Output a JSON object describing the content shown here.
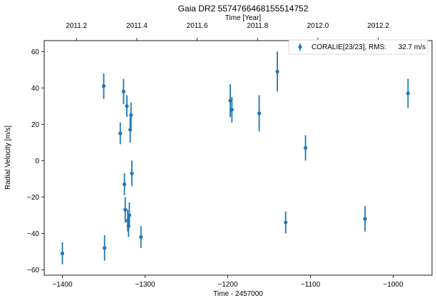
{
  "chart_data": {
    "type": "scatter",
    "title": "Gaia DR2 5574766468155514752",
    "xlabel": "Time - 2457000",
    "ylabel": "Radial Velocity [m/s]",
    "x2label": "Time [Year]",
    "xlim": [
      -1422,
      -953
    ],
    "ylim": [
      -63,
      66
    ],
    "xticks": [
      -1400,
      -1300,
      -1200,
      -1100,
      -1000
    ],
    "yticks": [
      -60,
      -40,
      -20,
      0,
      20,
      40,
      60
    ],
    "x2ticks": [
      {
        "label": "2011.2",
        "x": -1383
      },
      {
        "label": "2011.4",
        "x": -1310
      },
      {
        "label": "2011.6",
        "x": -1237
      },
      {
        "label": "2011.8",
        "x": -1164
      },
      {
        "label": "2012.0",
        "x": -1091
      },
      {
        "label": "2012.2",
        "x": -1018
      }
    ],
    "grid": false,
    "legend_position": "top-right",
    "colors": {
      "series": "#1f77b4"
    },
    "series": [
      {
        "name": "CORALIE[23/23], RMS:",
        "rms": "32.7 m/s",
        "points": [
          {
            "x": -1400,
            "y": -51,
            "err": 6
          },
          {
            "x": -1350,
            "y": 41,
            "err": 7
          },
          {
            "x": -1349,
            "y": -48,
            "err": 7
          },
          {
            "x": -1330,
            "y": 15,
            "err": 6
          },
          {
            "x": -1326,
            "y": 38,
            "err": 7
          },
          {
            "x": -1325,
            "y": -13,
            "err": 6
          },
          {
            "x": -1324,
            "y": -27,
            "err": 7
          },
          {
            "x": -1322,
            "y": 30,
            "err": 6
          },
          {
            "x": -1321,
            "y": -33,
            "err": 6
          },
          {
            "x": -1320,
            "y": -36,
            "err": 6
          },
          {
            "x": -1319,
            "y": -30,
            "err": 7
          },
          {
            "x": -1318,
            "y": 17,
            "err": 7
          },
          {
            "x": -1317,
            "y": 25,
            "err": 7
          },
          {
            "x": -1316,
            "y": -7,
            "err": 7
          },
          {
            "x": -1305,
            "y": -42,
            "err": 6
          },
          {
            "x": -1197,
            "y": 33,
            "err": 9
          },
          {
            "x": -1195,
            "y": 28,
            "err": 7
          },
          {
            "x": -1162,
            "y": 26,
            "err": 10
          },
          {
            "x": -1140,
            "y": 49,
            "err": 11
          },
          {
            "x": -1130,
            "y": -34,
            "err": 6
          },
          {
            "x": -1106,
            "y": 7,
            "err": 7
          },
          {
            "x": -1034,
            "y": -32,
            "err": 7
          },
          {
            "x": -982,
            "y": 37,
            "err": 8
          }
        ]
      }
    ]
  }
}
